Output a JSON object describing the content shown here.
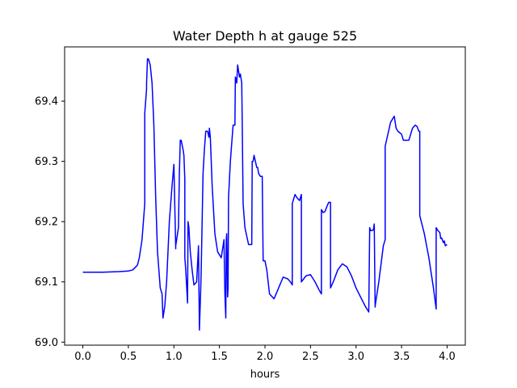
{
  "chart_data": {
    "type": "line",
    "title": "Water Depth h at gauge 525",
    "xlabel": "hours",
    "ylabel": "",
    "xlim": [
      -0.2,
      4.2
    ],
    "ylim": [
      68.995,
      69.49
    ],
    "xticks": [
      0.0,
      0.5,
      1.0,
      1.5,
      2.0,
      2.5,
      3.0,
      3.5,
      4.0
    ],
    "xtick_labels": [
      "0.0",
      "0.5",
      "1.0",
      "1.5",
      "2.0",
      "2.5",
      "3.0",
      "3.5",
      "4.0"
    ],
    "yticks": [
      69.0,
      69.1,
      69.2,
      69.3,
      69.4
    ],
    "ytick_labels": [
      "69.0",
      "69.1",
      "69.2",
      "69.3",
      "69.4"
    ],
    "grid": false,
    "series": [
      {
        "name": "h",
        "color": "#0000ff",
        "x": [
          0.0,
          0.2,
          0.4,
          0.5,
          0.55,
          0.6,
          0.62,
          0.65,
          0.68,
          0.68,
          0.7,
          0.7,
          0.71,
          0.72,
          0.74,
          0.76,
          0.78,
          0.8,
          0.82,
          0.85,
          0.87,
          0.88,
          0.89,
          0.9,
          0.92,
          0.95,
          0.98,
          1.0,
          1.02,
          1.02,
          1.05,
          1.06,
          1.07,
          1.08,
          1.1,
          1.11,
          1.12,
          1.12,
          1.13,
          1.15,
          1.155,
          1.165,
          1.17,
          1.18,
          1.2,
          1.22,
          1.25,
          1.27,
          1.28,
          1.295,
          1.3,
          1.32,
          1.335,
          1.35,
          1.37,
          1.385,
          1.39,
          1.4,
          1.42,
          1.45,
          1.48,
          1.5,
          1.52,
          1.55,
          1.56,
          1.57,
          1.575,
          1.58,
          1.59,
          1.595,
          1.6,
          1.62,
          1.65,
          1.67,
          1.675,
          1.69,
          1.7,
          1.72,
          1.73,
          1.745,
          1.75,
          1.76,
          1.77,
          1.78,
          1.82,
          1.84,
          1.855,
          1.86,
          1.87,
          1.88,
          1.91,
          1.92,
          1.93,
          1.95,
          1.97,
          1.98,
          2.0,
          2.02,
          2.05,
          2.1,
          2.15,
          2.2,
          2.25,
          2.28,
          2.3,
          2.3,
          2.33,
          2.35,
          2.38,
          2.4,
          2.4,
          2.42,
          2.45,
          2.5,
          2.55,
          2.6,
          2.62,
          2.62,
          2.64,
          2.66,
          2.68,
          2.7,
          2.72,
          2.72,
          2.75,
          2.8,
          2.85,
          2.9,
          2.95,
          3.0,
          3.05,
          3.1,
          3.14,
          3.15,
          3.16,
          3.19,
          3.2,
          3.21,
          3.21,
          3.25,
          3.3,
          3.32,
          3.32,
          3.35,
          3.38,
          3.4,
          3.42,
          3.44,
          3.46,
          3.5,
          3.52,
          3.55,
          3.58,
          3.62,
          3.65,
          3.67,
          3.69,
          3.7,
          3.7,
          3.75,
          3.8,
          3.85,
          3.88,
          3.88,
          3.9,
          3.92,
          3.93,
          3.94,
          3.96,
          3.97,
          3.98,
          4.0
        ],
        "y": [
          69.116,
          69.116,
          69.117,
          69.118,
          69.12,
          69.128,
          69.14,
          69.17,
          69.23,
          69.38,
          69.42,
          69.43,
          69.47,
          69.47,
          69.46,
          69.43,
          69.36,
          69.24,
          69.15,
          69.09,
          69.08,
          69.04,
          69.05,
          69.06,
          69.1,
          69.2,
          69.26,
          69.295,
          69.155,
          69.16,
          69.19,
          69.28,
          69.335,
          69.335,
          69.32,
          69.31,
          69.27,
          69.14,
          69.12,
          69.065,
          69.2,
          69.19,
          69.175,
          69.15,
          69.12,
          69.095,
          69.1,
          69.16,
          69.02,
          69.09,
          69.12,
          69.28,
          69.32,
          69.35,
          69.35,
          69.34,
          69.355,
          69.34,
          69.26,
          69.18,
          69.15,
          69.145,
          69.14,
          69.17,
          69.08,
          69.04,
          69.17,
          69.18,
          69.075,
          69.09,
          69.24,
          69.3,
          69.36,
          69.36,
          69.44,
          69.43,
          69.46,
          69.44,
          69.445,
          69.43,
          69.37,
          69.23,
          69.21,
          69.19,
          69.162,
          69.162,
          69.162,
          69.3,
          69.3,
          69.31,
          69.29,
          69.29,
          69.28,
          69.275,
          69.275,
          69.135,
          69.135,
          69.12,
          69.08,
          69.072,
          69.09,
          69.108,
          69.105,
          69.1,
          69.095,
          69.23,
          69.245,
          69.24,
          69.235,
          69.245,
          69.1,
          69.104,
          69.11,
          69.112,
          69.1,
          69.085,
          69.08,
          69.22,
          69.215,
          69.217,
          69.225,
          69.232,
          69.232,
          69.09,
          69.1,
          69.12,
          69.13,
          69.125,
          69.11,
          69.09,
          69.075,
          69.06,
          69.05,
          69.19,
          69.185,
          69.186,
          69.196,
          69.058,
          69.06,
          69.1,
          69.16,
          69.17,
          69.325,
          69.345,
          69.365,
          69.37,
          69.375,
          69.355,
          69.35,
          69.345,
          69.335,
          69.335,
          69.335,
          69.355,
          69.36,
          69.358,
          69.35,
          69.35,
          69.21,
          69.18,
          69.14,
          69.09,
          69.055,
          69.19,
          69.185,
          69.182,
          69.172,
          69.173,
          69.165,
          69.168,
          69.16,
          69.162
        ]
      }
    ]
  }
}
